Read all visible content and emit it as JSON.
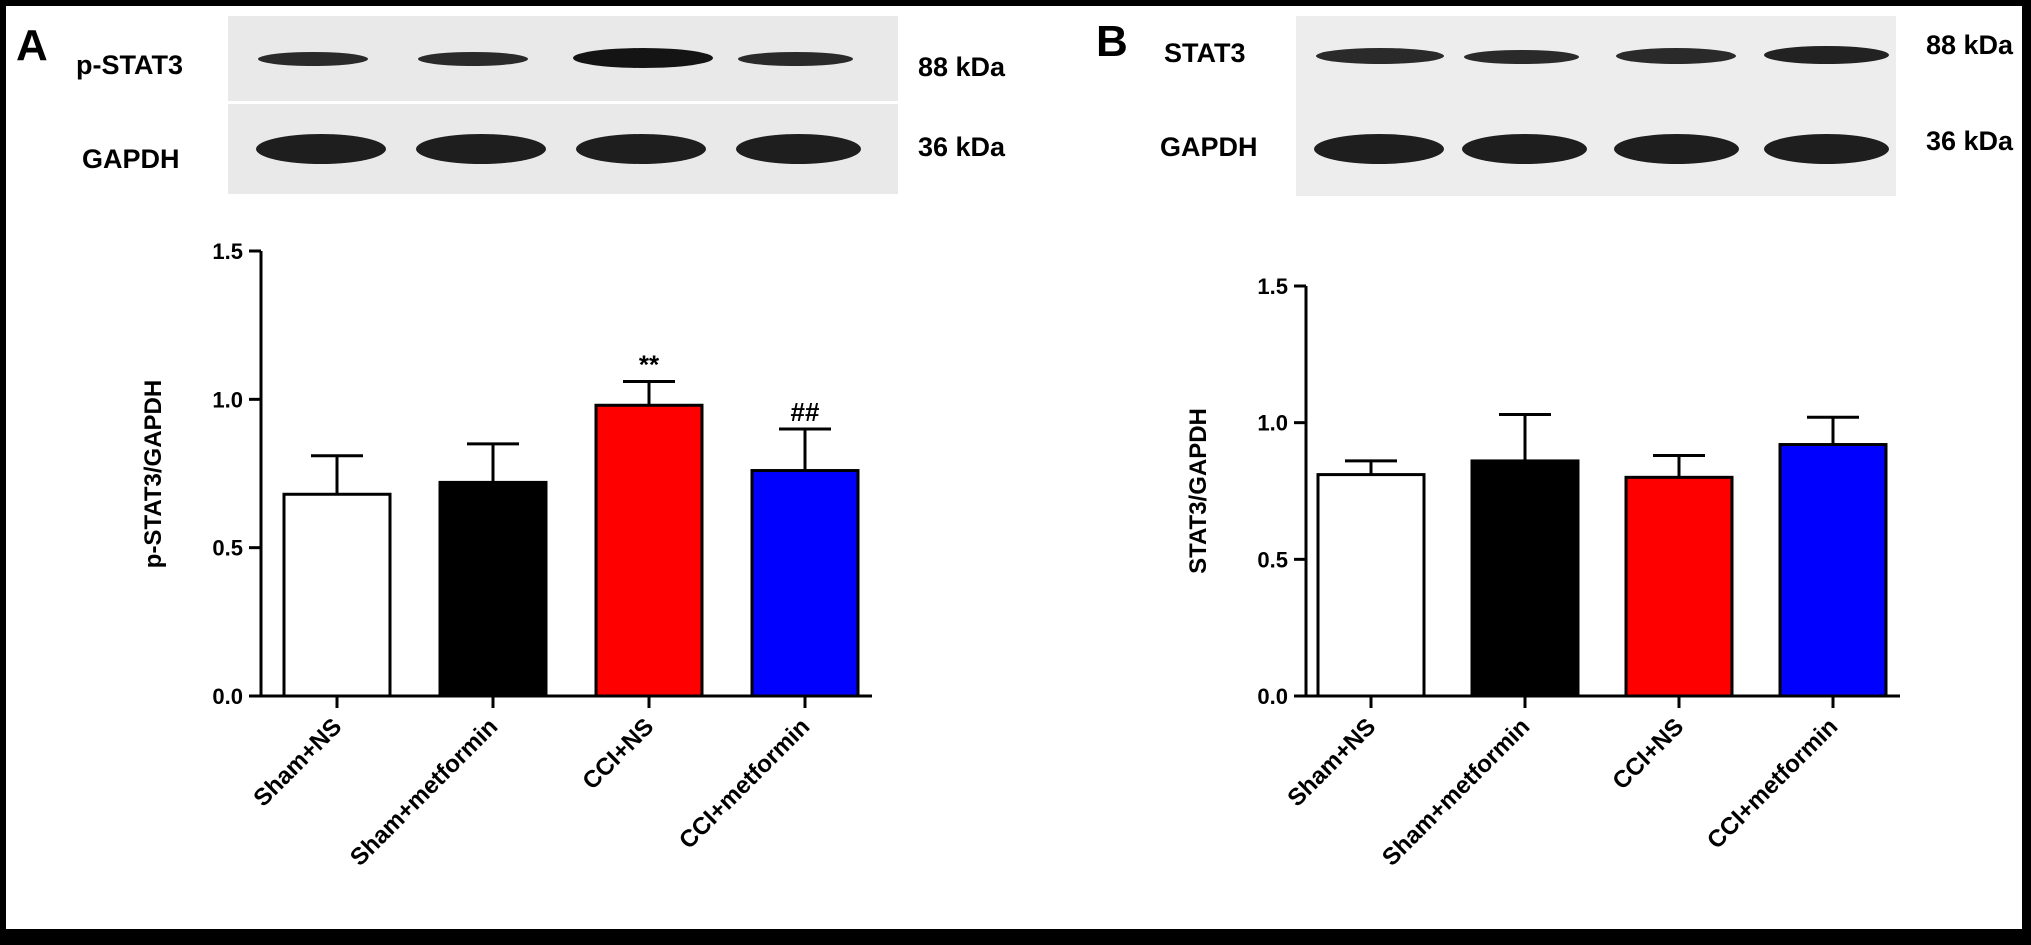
{
  "panels": [
    {
      "letter": "A",
      "blots": [
        {
          "label": "p-STAT3",
          "size": "88 kDa"
        },
        {
          "label": "GAPDH",
          "size": "36 kDa"
        }
      ]
    },
    {
      "letter": "B",
      "blots": [
        {
          "label": "STAT3",
          "size": "88 kDa"
        },
        {
          "label": "GAPDH",
          "size": "36 kDa"
        }
      ]
    }
  ],
  "colors": {
    "sham_ns": "#ffffff",
    "sham_metformin": "#000000",
    "cci_ns": "#ff0000",
    "cci_metformin": "#0000ff"
  },
  "chart_data": [
    {
      "type": "bar",
      "categories": [
        "Sham+NS",
        "Sham+metformin",
        "CCI+NS",
        "CCI+metformin"
      ],
      "values": [
        0.68,
        0.72,
        0.98,
        0.76
      ],
      "errors": [
        0.13,
        0.13,
        0.08,
        0.14
      ],
      "annotations": [
        "",
        "",
        "**",
        "##"
      ],
      "xlabel": "",
      "ylabel": "p-STAT3/GAPDH",
      "ylim": [
        0,
        1.5
      ],
      "yticks": [
        "0.0",
        "0.5",
        "1.0",
        "1.5"
      ],
      "grid": false,
      "legend": "none"
    },
    {
      "type": "bar",
      "categories": [
        "Sham+NS",
        "Sham+metformin",
        "CCI+NS",
        "CCI+metformin"
      ],
      "values": [
        0.81,
        0.86,
        0.8,
        0.92
      ],
      "errors": [
        0.05,
        0.17,
        0.08,
        0.1
      ],
      "annotations": [
        "",
        "",
        "",
        ""
      ],
      "xlabel": "",
      "ylabel": "STAT3/GAPDH",
      "ylim": [
        0,
        1.5
      ],
      "yticks": [
        "0.0",
        "0.5",
        "1.0",
        "1.5"
      ],
      "grid": false,
      "legend": "none"
    }
  ]
}
